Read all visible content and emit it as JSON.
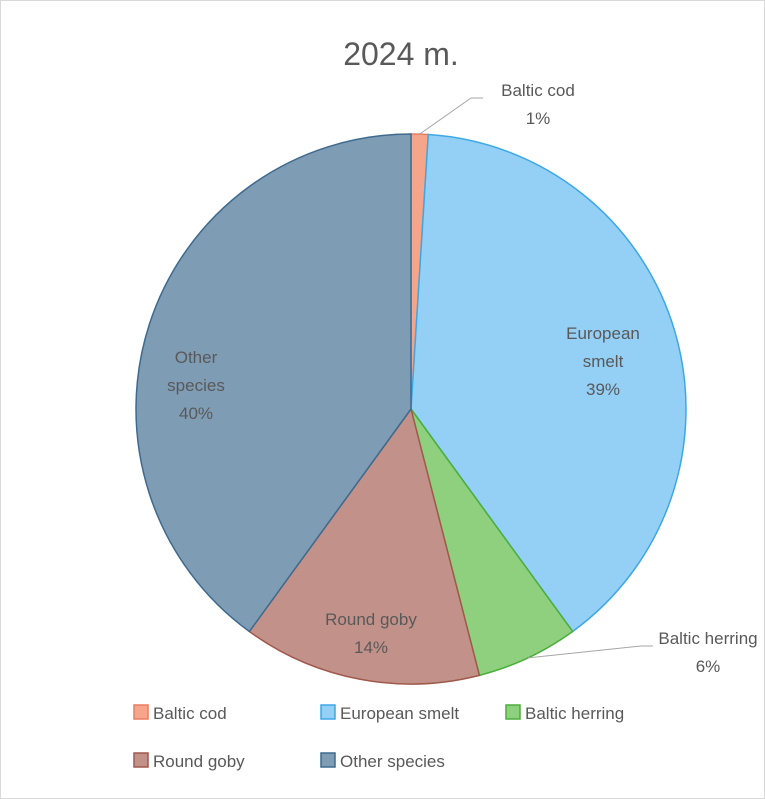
{
  "chart_data": {
    "type": "pie",
    "title": "2024 m.",
    "categories": [
      "Baltic cod",
      "European smelt",
      "Baltic herring",
      "Round goby",
      "Other species"
    ],
    "values": [
      1,
      39,
      6,
      14,
      40
    ],
    "value_labels": [
      "1%",
      "39%",
      "6%",
      "14%",
      "40%"
    ],
    "colors": [
      "#F4A58A",
      "#94CFF5",
      "#8ED07E",
      "#C2928A",
      "#7F9CB5"
    ],
    "edge_colors": [
      "#E97E5F",
      "#3DA8E6",
      "#4AAE3A",
      "#A0584B",
      "#3E6A8E"
    ],
    "legend_position": "bottom"
  }
}
